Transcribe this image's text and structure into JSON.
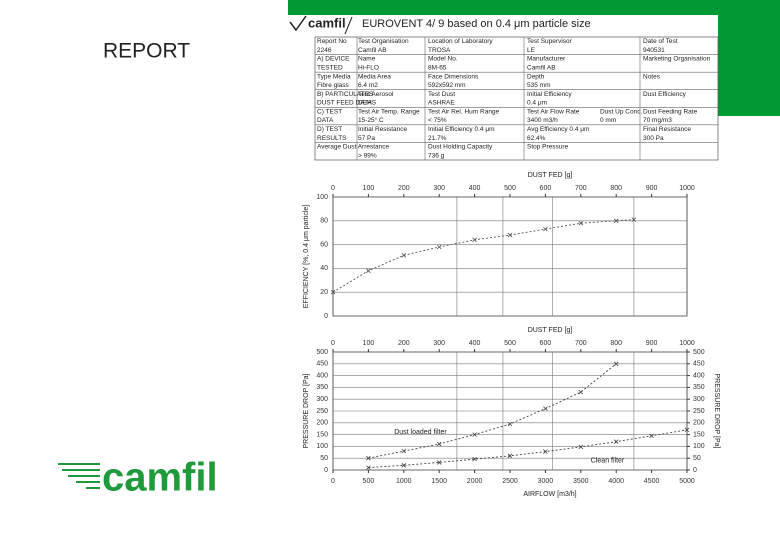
{
  "slide": {
    "title": "REPORT",
    "logo": "camfil"
  },
  "report": {
    "brand": "camfil",
    "heading": "EUROVENT 4/ 9 based on 0.4 μm particle size",
    "rows": [
      [
        "Report No",
        "Test Organisation",
        "Location of Laboratory",
        "Test Supervisor",
        "Date of Test"
      ],
      [
        "2246",
        "Camfil AB",
        "TROSA",
        "LE",
        "940531"
      ],
      [
        "A) DEVICE",
        "Name",
        "Model No.",
        "Manufacturer",
        "Marketing Organisation"
      ],
      [
        "TESTED",
        "Hi-FLO",
        "8M-65",
        "Camfil AB",
        null
      ],
      [
        "Type Media",
        "Media Area",
        "Face Dimensions",
        "Depth",
        "Notes"
      ],
      [
        "Fibre glass",
        "6.4 m2",
        "592x592 mm",
        "535 mm",
        null
      ],
      [
        "B) PARTICULATES",
        "Test Aerosol",
        "Test Dust",
        "Initial Efficiency",
        "Dust Efficiency"
      ],
      [
        "DUST FEED DATA",
        "DEHS",
        "ASHRAE",
        "0.4 μm",
        null
      ],
      [
        "C) TEST",
        "Test Air Temp. Range",
        "Test Air Rel. Hum Range",
        "Test Air Flow Rate",
        "Dust Up Conc.",
        "Dust Feeding Rate"
      ],
      [
        "DATA",
        "15-25° C",
        "< 75%",
        "3400 m3/h",
        "0 mm",
        "70 mg/m3"
      ],
      [
        "D) TEST",
        "Initial Resistance",
        "Initial Efficiency 0.4 μm",
        "Avg Efficiency 0.4 μm",
        "Final Resistance"
      ],
      [
        "RESULTS",
        "57 Pa",
        "21.7%",
        "62.4%",
        "300 Pa"
      ],
      [
        "Average Dust Arrestance",
        null,
        "Dust Holding Capacity",
        "Stop Pressure",
        null
      ],
      [
        null,
        "> 99%",
        "736 g",
        null,
        null
      ]
    ]
  },
  "chart_data": [
    {
      "type": "line",
      "x_label": "DUST FED [g]",
      "x_axis_position": "top",
      "y_label": "EFFICIENCY [%, 0.4 μm particle]",
      "xlim": [
        0,
        1000
      ],
      "xticks": [
        0,
        100,
        200,
        300,
        400,
        500,
        600,
        700,
        800,
        900,
        1000
      ],
      "ylim": [
        0,
        100
      ],
      "yticks": [
        0,
        20,
        40,
        60,
        80,
        100
      ],
      "grid": true,
      "series": [
        {
          "name": "Efficiency",
          "color": "#555555",
          "x": [
            0,
            100,
            200,
            300,
            400,
            500,
            600,
            700,
            800,
            850
          ],
          "values": [
            20,
            38,
            51,
            58,
            64,
            68,
            73,
            78,
            80,
            81
          ]
        }
      ]
    },
    {
      "type": "line",
      "x_label": "AIRFLOW [m3/h]",
      "x_axis_position": "bottom",
      "x2_label": "DUST FED [g]",
      "y_label": "PRESSURE DROP [Pa]",
      "y2_label": "PRESSURE DROP [Pa]",
      "xlim": [
        0,
        5000
      ],
      "xticks": [
        0,
        500,
        1000,
        1500,
        2000,
        2500,
        3000,
        3500,
        4000,
        4500,
        5000
      ],
      "x2lim": [
        0,
        1000
      ],
      "x2ticks": [
        0,
        100,
        200,
        300,
        400,
        500,
        600,
        700,
        800,
        900,
        1000
      ],
      "ylim": [
        0,
        500
      ],
      "yticks": [
        0,
        50,
        100,
        150,
        200,
        250,
        300,
        350,
        400,
        450,
        500
      ],
      "y2lim": [
        0,
        500
      ],
      "y2ticks": [
        0,
        50,
        100,
        150,
        200,
        250,
        300,
        350,
        400,
        450,
        500
      ],
      "grid": true,
      "series": [
        {
          "name": "Dust loaded filter",
          "color": "#444444",
          "x": [
            500,
            1000,
            1500,
            2000,
            2500,
            3000,
            3500,
            4000
          ],
          "values": [
            50,
            80,
            110,
            150,
            195,
            260,
            330,
            450
          ]
        },
        {
          "name": "Clean filter",
          "color": "#444444",
          "x": [
            500,
            1000,
            1500,
            2000,
            2500,
            3000,
            3500,
            4000,
            4500,
            5000
          ],
          "values": [
            10,
            20,
            32,
            46,
            60,
            78,
            98,
            120,
            145,
            170
          ]
        }
      ]
    }
  ]
}
